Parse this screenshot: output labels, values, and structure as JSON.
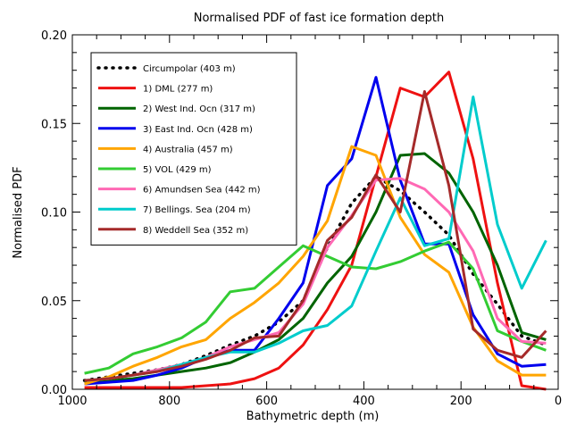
{
  "chart_data": {
    "type": "line",
    "title": "Normalised PDF of fast ice formation depth",
    "xlabel": "Bathymetric depth (m)",
    "ylabel": "Normalised PDF",
    "xlim": [
      1000,
      0
    ],
    "ylim": [
      0,
      0.2
    ],
    "x_reversed": true,
    "xticks": [
      1000,
      800,
      600,
      400,
      200,
      0
    ],
    "xtick_labels": [
      "1000",
      "800",
      "600",
      "400",
      "200",
      "0"
    ],
    "yticks": [
      0.0,
      0.05,
      0.1,
      0.15,
      0.2
    ],
    "ytick_labels": [
      "0.00",
      "0.05",
      "0.10",
      "0.15",
      "0.20"
    ],
    "grid": false,
    "legend_position": "upper-left",
    "x": [
      975,
      925,
      875,
      825,
      775,
      725,
      675,
      625,
      575,
      525,
      475,
      425,
      375,
      325,
      275,
      225,
      175,
      125,
      75,
      25
    ],
    "series": [
      {
        "name": "Circumpolar (403 m)",
        "color": "#000000",
        "dashed": true,
        "values": [
          0.005,
          0.007,
          0.009,
          0.011,
          0.014,
          0.019,
          0.025,
          0.03,
          0.038,
          0.05,
          0.08,
          0.105,
          0.12,
          0.112,
          0.1,
          0.087,
          0.065,
          0.048,
          0.03,
          0.025
        ]
      },
      {
        "name": "1) DML (277 m)",
        "color": "#ee1111",
        "values": [
          0.001,
          0.001,
          0.001,
          0.001,
          0.001,
          0.002,
          0.003,
          0.006,
          0.012,
          0.025,
          0.045,
          0.07,
          0.12,
          0.17,
          0.165,
          0.179,
          0.13,
          0.06,
          0.002,
          0.0
        ]
      },
      {
        "name": "2) West Ind. Ocn (317 m)",
        "color": "#006400",
        "values": [
          0.004,
          0.005,
          0.006,
          0.008,
          0.01,
          0.012,
          0.015,
          0.021,
          0.028,
          0.04,
          0.06,
          0.075,
          0.1,
          0.132,
          0.133,
          0.122,
          0.1,
          0.07,
          0.032,
          0.028
        ]
      },
      {
        "name": "3) East Ind. Ocn (428 m)",
        "color": "#0000ee",
        "values": [
          0.003,
          0.004,
          0.005,
          0.008,
          0.012,
          0.018,
          0.022,
          0.022,
          0.04,
          0.06,
          0.115,
          0.13,
          0.176,
          0.118,
          0.082,
          0.082,
          0.042,
          0.02,
          0.013,
          0.014
        ]
      },
      {
        "name": "4) Australia (457 m)",
        "color": "#ffa500",
        "values": [
          0.003,
          0.007,
          0.013,
          0.018,
          0.024,
          0.028,
          0.04,
          0.049,
          0.06,
          0.075,
          0.095,
          0.137,
          0.132,
          0.097,
          0.076,
          0.066,
          0.035,
          0.016,
          0.008,
          0.008
        ]
      },
      {
        "name": "5) VOL (429 m)",
        "color": "#33cc33",
        "values": [
          0.009,
          0.012,
          0.02,
          0.024,
          0.029,
          0.038,
          0.055,
          0.057,
          0.069,
          0.081,
          0.075,
          0.069,
          0.068,
          0.072,
          0.078,
          0.083,
          0.068,
          0.033,
          0.027,
          0.022
        ]
      },
      {
        "name": "6) Amundsen Sea (442 m)",
        "color": "#ff69b4",
        "values": [
          0.005,
          0.006,
          0.008,
          0.011,
          0.014,
          0.018,
          0.024,
          0.028,
          0.032,
          0.048,
          0.08,
          0.098,
          0.118,
          0.119,
          0.113,
          0.1,
          0.078,
          0.04,
          0.027,
          0.026
        ]
      },
      {
        "name": "7) Bellings. Sea (204 m)",
        "color": "#00cccc",
        "values": [
          0.005,
          0.006,
          0.008,
          0.01,
          0.014,
          0.018,
          0.021,
          0.021,
          0.026,
          0.033,
          0.036,
          0.047,
          0.078,
          0.108,
          0.081,
          0.085,
          0.165,
          0.093,
          0.057,
          0.084
        ]
      },
      {
        "name": "8) Weddell Sea (352 m)",
        "color": "#a52a2a",
        "values": [
          0.005,
          0.006,
          0.008,
          0.01,
          0.013,
          0.017,
          0.022,
          0.029,
          0.03,
          0.05,
          0.084,
          0.097,
          0.121,
          0.1,
          0.168,
          0.115,
          0.034,
          0.022,
          0.018,
          0.033
        ]
      }
    ]
  }
}
